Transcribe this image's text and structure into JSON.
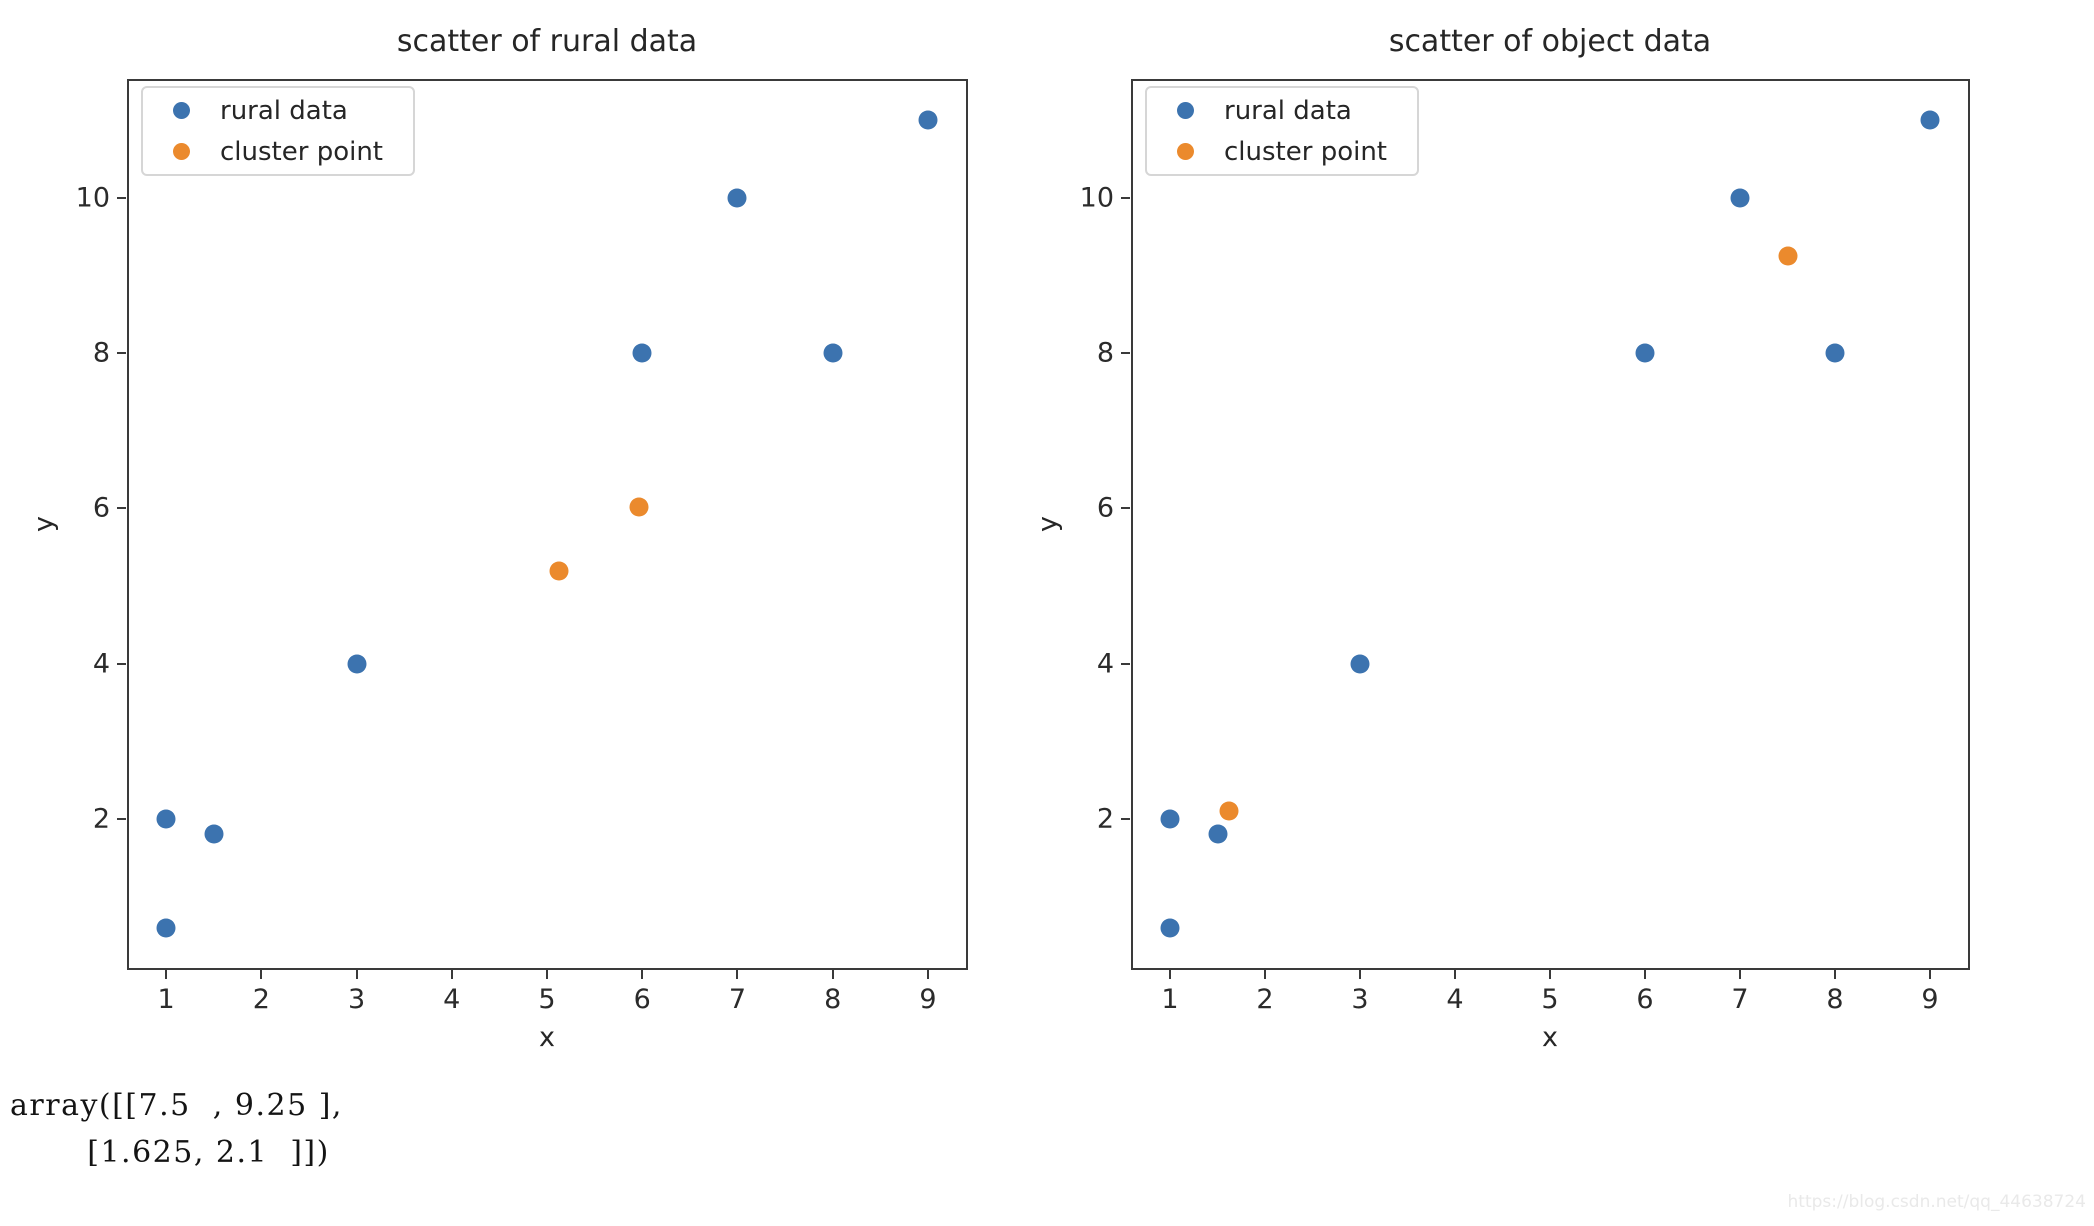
{
  "colors": {
    "rural": "#3c73af",
    "cluster": "#eb8a2d"
  },
  "console_output": {
    "text": "array([[7.5  , 9.25 ],\n       [1.625, 2.1  ]])"
  },
  "watermark": "https://blog.csdn.net/qq_44638724",
  "chart_data": [
    {
      "type": "scatter",
      "title": "scatter of rural data",
      "xlabel": "x",
      "ylabel": "y",
      "xlim": [
        0.6,
        9.4
      ],
      "ylim": [
        0.08,
        11.52
      ],
      "xticks": [
        1,
        2,
        3,
        4,
        5,
        6,
        7,
        8,
        9
      ],
      "yticks": [
        2,
        4,
        6,
        8,
        10
      ],
      "grid": false,
      "legend_position": "upper left",
      "series": [
        {
          "name": "rural data",
          "color_key": "rural",
          "points": [
            [
              1,
              2
            ],
            [
              1.5,
              1.8
            ],
            [
              3,
              4
            ],
            [
              6,
              8
            ],
            [
              7,
              10
            ],
            [
              8,
              8
            ],
            [
              9,
              11
            ],
            [
              1,
              0.6
            ]
          ]
        },
        {
          "name": "cluster point",
          "color_key": "cluster",
          "points": [
            [
              5.13,
              5.19
            ],
            [
              5.97,
              6.02
            ]
          ]
        }
      ]
    },
    {
      "type": "scatter",
      "title": "scatter of object data",
      "xlabel": "x",
      "ylabel": "y",
      "xlim": [
        0.6,
        9.4
      ],
      "ylim": [
        0.08,
        11.52
      ],
      "xticks": [
        1,
        2,
        3,
        4,
        5,
        6,
        7,
        8,
        9
      ],
      "yticks": [
        2,
        4,
        6,
        8,
        10
      ],
      "grid": false,
      "legend_position": "upper left",
      "series": [
        {
          "name": "rural data",
          "color_key": "rural",
          "points": [
            [
              1,
              2
            ],
            [
              1.5,
              1.8
            ],
            [
              3,
              4
            ],
            [
              6,
              8
            ],
            [
              7,
              10
            ],
            [
              8,
              8
            ],
            [
              9,
              11
            ],
            [
              1,
              0.6
            ]
          ]
        },
        {
          "name": "cluster point",
          "color_key": "cluster",
          "points": [
            [
              7.5,
              9.25
            ],
            [
              1.625,
              2.1
            ]
          ]
        }
      ]
    }
  ]
}
